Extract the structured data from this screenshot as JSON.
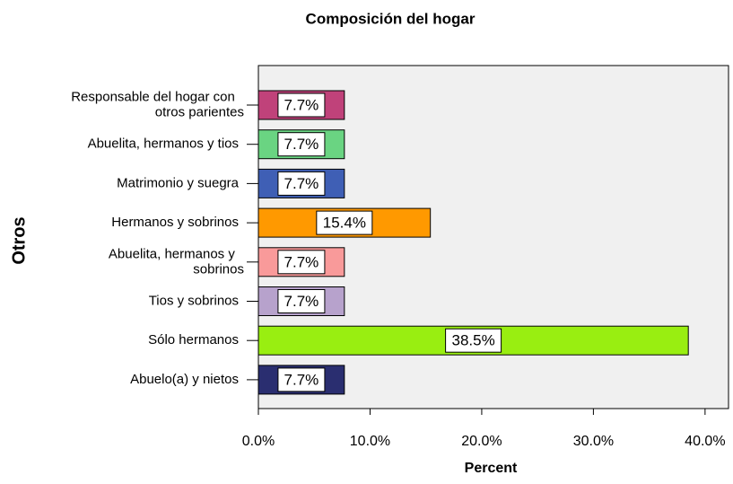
{
  "chart_data": {
    "type": "barh",
    "title": "Composición del hogar",
    "xlabel": "Percent",
    "ylabel": "Otros",
    "categories": [
      "Responsable del hogar con otros parientes",
      "Abuelita, hermanos y tios",
      "Matrimonio y suegra",
      "Hermanos y sobrinos",
      "Abuelita, hermanos y sobrinos",
      "Tios y sobrinos",
      "Sólo hermanos",
      "Abuelo(a) y nietos"
    ],
    "values": [
      7.7,
      7.7,
      7.7,
      15.4,
      7.7,
      7.7,
      38.5,
      7.7
    ],
    "value_labels": [
      "7.7%",
      "7.7%",
      "7.7%",
      "15.4%",
      "7.7%",
      "7.7%",
      "38.5%",
      "7.7%"
    ],
    "colors": [
      "#c0427a",
      "#6ad482",
      "#3f5fb5",
      "#ff9900",
      "#f99a9a",
      "#b7a2cc",
      "#99ee11",
      "#2a2e70"
    ],
    "xlim": [
      0,
      42.1
    ],
    "xticks": [
      {
        "value": 0,
        "label": "0.0%"
      },
      {
        "value": 10,
        "label": "10.0%"
      },
      {
        "value": 20,
        "label": "20.0%"
      },
      {
        "value": 30,
        "label": "30.0%"
      },
      {
        "value": 40,
        "label": "40.0%"
      }
    ]
  }
}
